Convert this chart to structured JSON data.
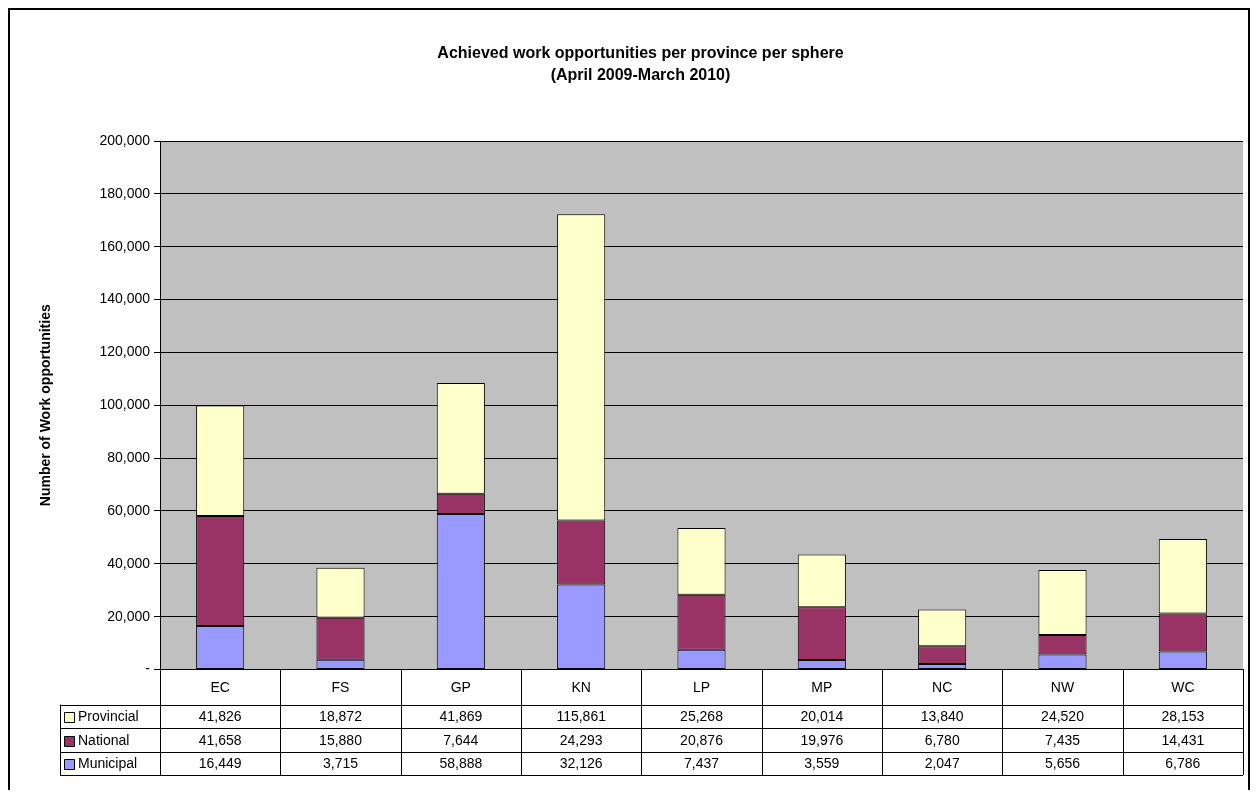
{
  "chart_data": {
    "type": "bar",
    "title": "Achieved work opportunities per province per sphere",
    "subtitle": "(April 2009-March 2010)",
    "ylabel": "Number of Work opportunities",
    "categories": [
      "EC",
      "FS",
      "GP",
      "KN",
      "LP",
      "MP",
      "NC",
      "NW",
      "WC"
    ],
    "stacked": true,
    "series": [
      {
        "name": "Municipal",
        "color": "#9999ff",
        "values": [
          16449,
          3715,
          58888,
          32126,
          7437,
          3559,
          2047,
          5656,
          6786
        ],
        "value_labels": [
          "16,449",
          "3,715",
          "58,888",
          "32,126",
          "7,437",
          "3,559",
          "2,047",
          "5,656",
          "6,786"
        ]
      },
      {
        "name": "National",
        "color": "#993366",
        "values": [
          41658,
          15880,
          7644,
          24293,
          20876,
          19976,
          6780,
          7435,
          14431
        ],
        "value_labels": [
          "41,658",
          "15,880",
          "7,644",
          "24,293",
          "20,876",
          "19,976",
          "6,780",
          "7,435",
          "14,431"
        ]
      },
      {
        "name": "Provincial",
        "color": "#ffffcc",
        "values": [
          41826,
          18872,
          41869,
          115861,
          25268,
          20014,
          13840,
          24520,
          28153
        ],
        "value_labels": [
          "41,826",
          "18,872",
          "41,869",
          "115,861",
          "25,268",
          "20,014",
          "13,840",
          "24,520",
          "28,153"
        ]
      }
    ],
    "ylim": [
      0,
      200000
    ],
    "yticks": [
      {
        "value": 0,
        "label": "-"
      },
      {
        "value": 20000,
        "label": "20,000"
      },
      {
        "value": 40000,
        "label": "40,000"
      },
      {
        "value": 60000,
        "label": "60,000"
      },
      {
        "value": 80000,
        "label": "80,000"
      },
      {
        "value": 100000,
        "label": "100,000"
      },
      {
        "value": 120000,
        "label": "120,000"
      },
      {
        "value": 140000,
        "label": "140,000"
      },
      {
        "value": 160000,
        "label": "160,000"
      },
      {
        "value": 180000,
        "label": "180,000"
      },
      {
        "value": 200000,
        "label": "200,000"
      }
    ],
    "grid": "y",
    "legend": "bottom"
  }
}
